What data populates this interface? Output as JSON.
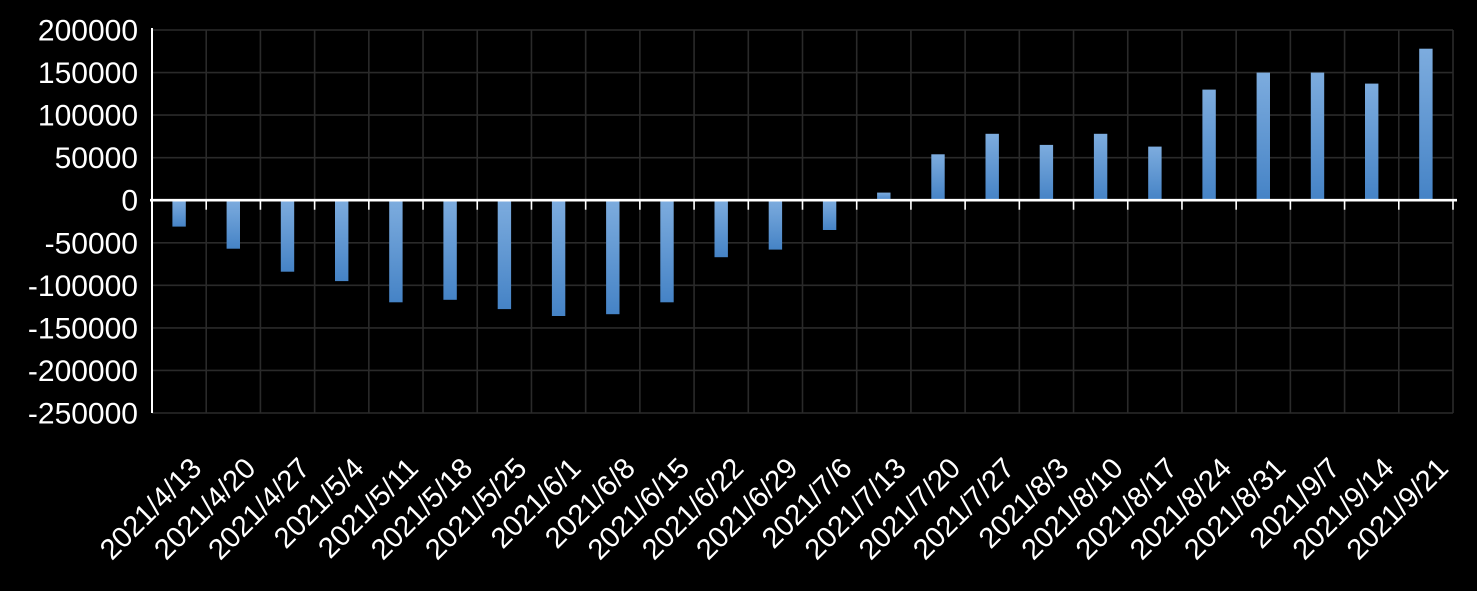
{
  "chart_data": {
    "type": "bar",
    "title": "",
    "xlabel": "",
    "ylabel": "",
    "categories": [
      "2021/4/13",
      "2021/4/20",
      "2021/4/27",
      "2021/5/4",
      "2021/5/11",
      "2021/5/18",
      "2021/5/25",
      "2021/6/1",
      "2021/6/8",
      "2021/6/15",
      "2021/6/22",
      "2021/6/29",
      "2021/7/6",
      "2021/7/13",
      "2021/7/20",
      "2021/7/27",
      "2021/8/3",
      "2021/8/10",
      "2021/8/17",
      "2021/8/24",
      "2021/8/31",
      "2021/9/7",
      "2021/9/14",
      "2021/9/21"
    ],
    "values": [
      -31000,
      -57000,
      -84000,
      -95000,
      -120000,
      -117000,
      -128000,
      -136000,
      -134000,
      -120000,
      -67000,
      -58000,
      -35000,
      9000,
      54000,
      78000,
      65000,
      78000,
      63000,
      130000,
      150000,
      150000,
      137000,
      178000
    ],
    "ylim": [
      -250000,
      200000
    ],
    "ytick_step": 50000,
    "y_tick_labels": [
      "200000",
      "150000",
      "100000",
      "50000",
      "0",
      "-50000",
      "-100000",
      "-150000",
      "-200000",
      "-250000"
    ],
    "grid": true,
    "legend": "none",
    "x_label_rotation_deg": -45,
    "colors": {
      "background": "#000000",
      "gridline": "#2a2a2a",
      "axis_line": "#ffffff",
      "tick_label": "#ffffff",
      "bar_gradient_top": "#7dacde",
      "bar_gradient_bottom": "#4583c6"
    }
  }
}
